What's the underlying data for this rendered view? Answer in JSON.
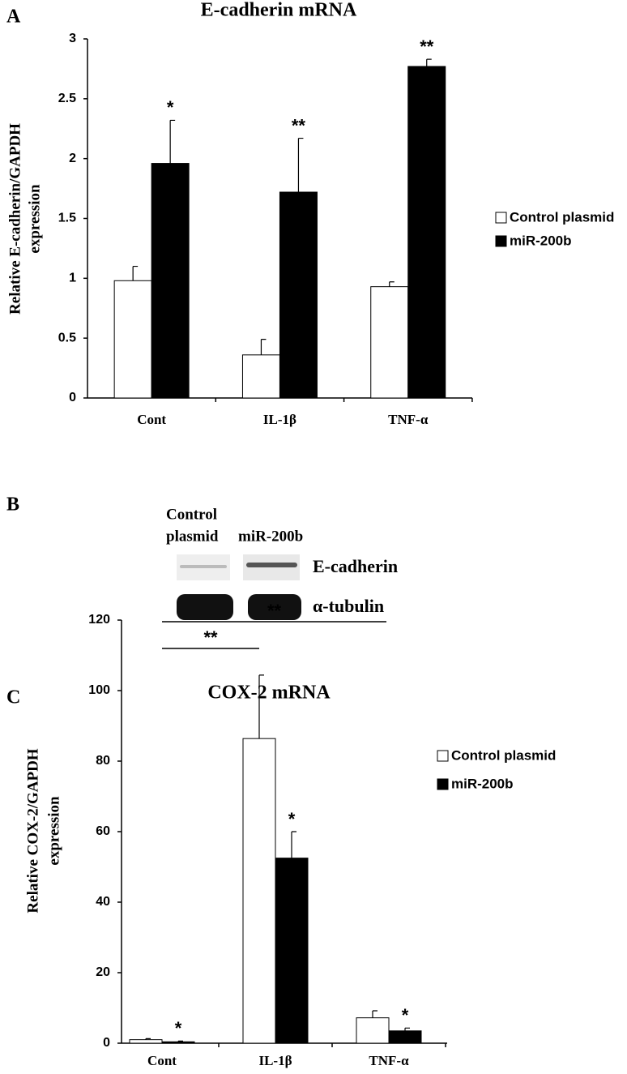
{
  "panel_labels": [
    "A",
    "B",
    "C"
  ],
  "chart_data": [
    {
      "type": "bar",
      "title": "E-cadherin mRNA",
      "y_label": [
        "Relative E-cadherin/GAPDH",
        "expression"
      ],
      "categories": [
        "Cont",
        "IL-1β",
        "TNF-α"
      ],
      "series": [
        {
          "name": "Control plasmid",
          "color": "#ffffff",
          "values": [
            0.98,
            0.36,
            0.93
          ],
          "errors": [
            0.12,
            0.13,
            0.04
          ]
        },
        {
          "name": "miR-200b",
          "color": "#000000",
          "values": [
            1.96,
            1.72,
            2.77
          ],
          "errors": [
            0.36,
            0.45,
            0.06
          ],
          "significance": [
            "*",
            "**",
            "**"
          ]
        }
      ],
      "ylim": [
        0,
        3
      ],
      "yticks": [
        0,
        0.5,
        1,
        1.5,
        2,
        2.5,
        3
      ]
    },
    {
      "type": "bar",
      "title": "COX-2 mRNA",
      "y_label": [
        "Relative COX-2/GAPDH",
        "expression"
      ],
      "categories": [
        "Cont",
        "IL-1β",
        "TNF-α"
      ],
      "series": [
        {
          "name": "Control plasmid",
          "color": "#ffffff",
          "values": [
            1,
            86.4,
            7.2
          ],
          "errors": [
            0.3,
            18,
            2
          ]
        },
        {
          "name": "miR-200b",
          "color": "#000000",
          "values": [
            0.4,
            52.5,
            3.5
          ],
          "errors": [
            0.2,
            7.5,
            0.8
          ],
          "significance": [
            "*",
            "*",
            "*"
          ]
        }
      ],
      "comparisons": [
        "**",
        "**"
      ],
      "ylim": [
        0,
        120
      ],
      "yticks": [
        0,
        20,
        40,
        60,
        80,
        100,
        120
      ]
    }
  ],
  "blot": {
    "lane_labels": [
      [
        "Control",
        "plasmid"
      ],
      "miR-200b"
    ],
    "rows": [
      "E-cadherin",
      "α-tubulin"
    ]
  }
}
